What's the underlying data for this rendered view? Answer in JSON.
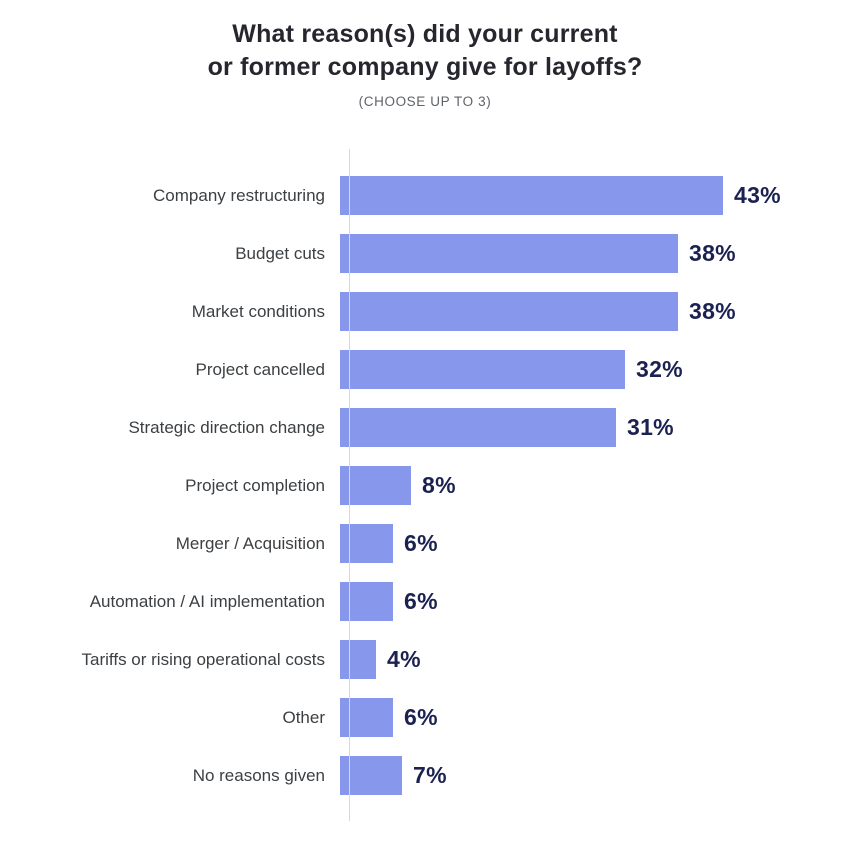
{
  "chart_data": {
    "type": "bar",
    "orientation": "horizontal",
    "title": "What reason(s) did your current or former company give for layoffs?",
    "title_lines": [
      "What reason(s) did your current",
      "or former company give for layoffs?"
    ],
    "subtitle": "(CHOOSE UP TO 3)",
    "categories": [
      "Company restructuring",
      "Budget cuts",
      "Market conditions",
      "Project cancelled",
      "Strategic direction change",
      "Project completion",
      "Merger / Acquisition",
      "Automation / AI implementation",
      "Tariffs or rising operational costs",
      "Other",
      "No reasons given"
    ],
    "values": [
      43,
      38,
      38,
      32,
      31,
      8,
      6,
      6,
      4,
      6,
      7
    ],
    "unit": "%",
    "xlim": [
      0,
      48
    ],
    "grid": false,
    "legend": false,
    "bar_color": "#8798ec",
    "value_label_color": "#1b2150",
    "category_label_color": "#3c4043",
    "axis_line_color": "#d8d8d8"
  }
}
